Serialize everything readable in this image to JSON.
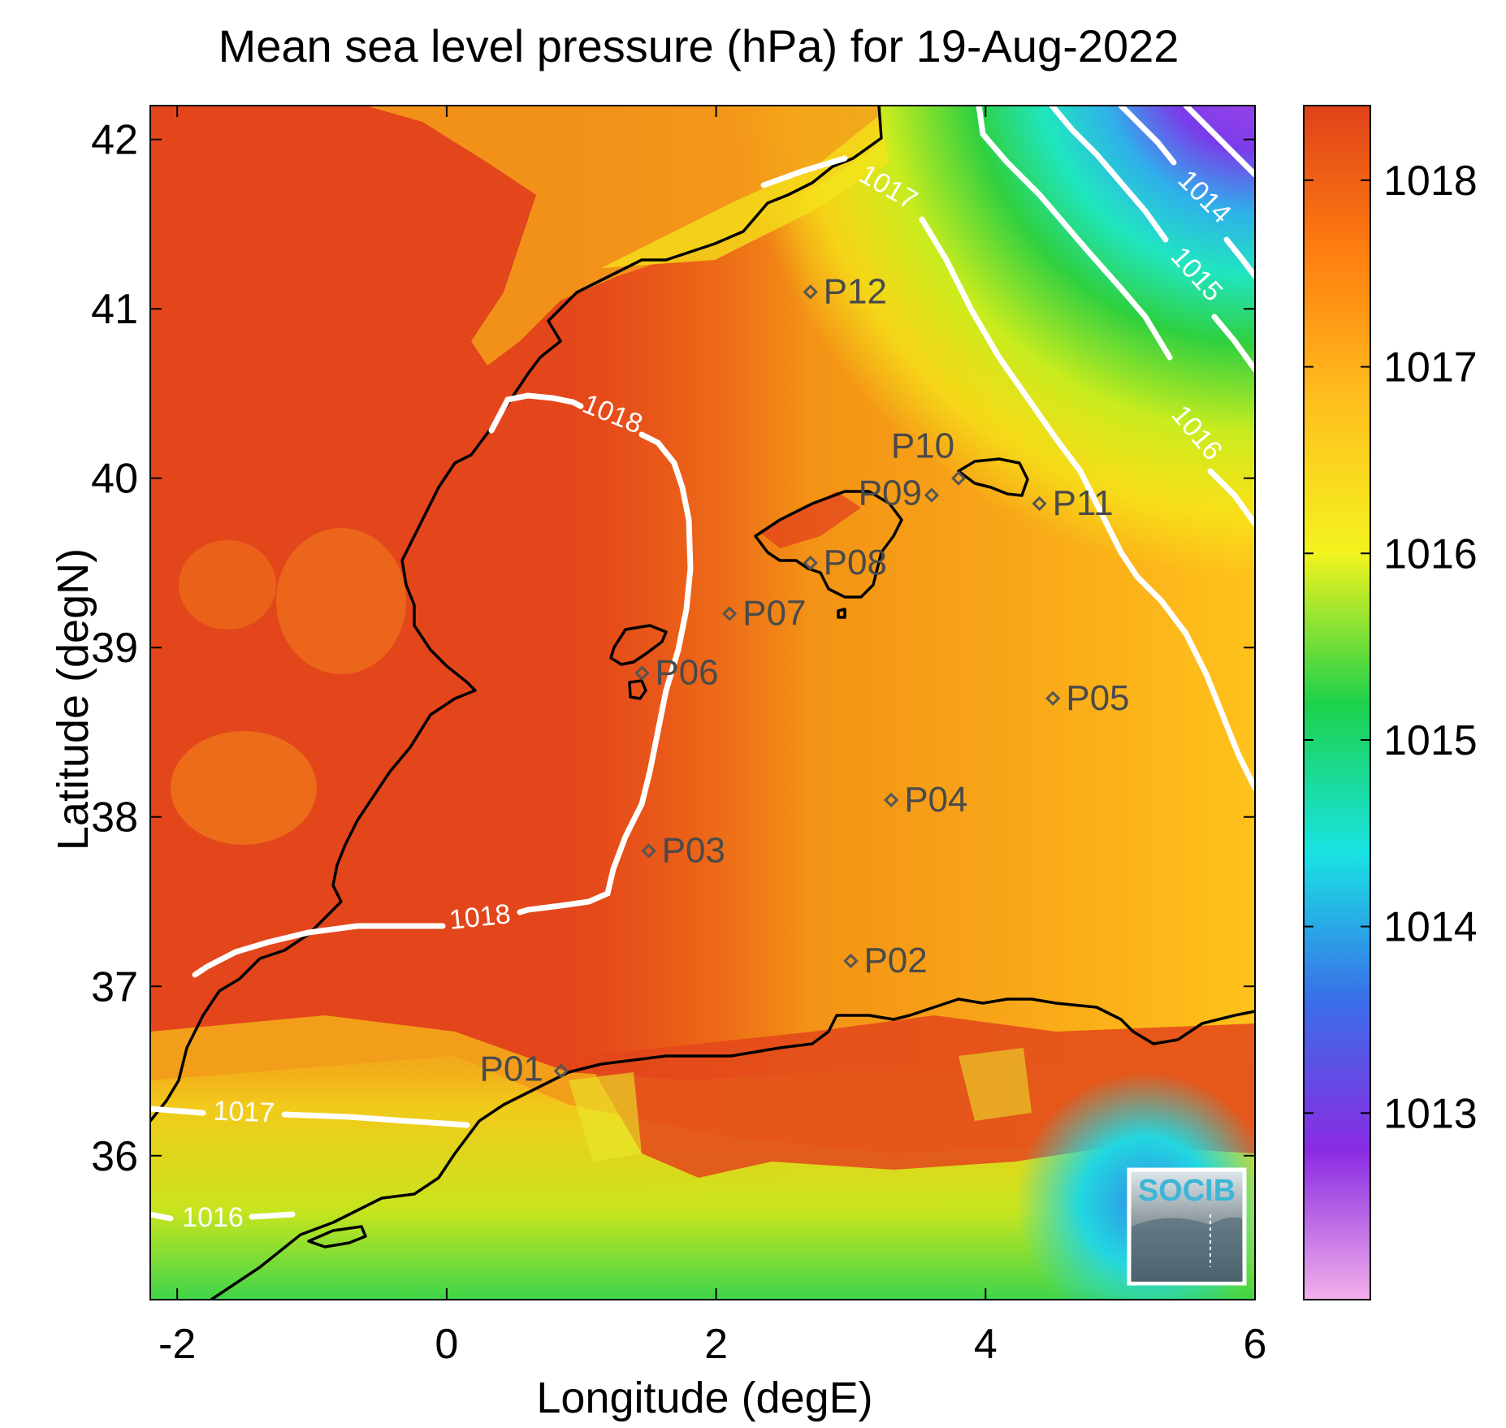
{
  "title": "Mean sea level pressure (hPa) for 19-Aug-2022",
  "axes": {
    "xlabel": "Longitude (degE)",
    "ylabel": "Latitude (degN)",
    "xlim": [
      -2.2,
      6.0
    ],
    "ylim": [
      35.15,
      42.2
    ],
    "xticks": [
      -2,
      0,
      2,
      4,
      6
    ],
    "yticks": [
      36,
      37,
      38,
      39,
      40,
      41,
      42
    ]
  },
  "colorbar": {
    "range": [
      1012.0,
      1018.4
    ],
    "ticks": [
      1013,
      1014,
      1015,
      1016,
      1017,
      1018
    ],
    "stops": [
      "#f2b0ea",
      "#8a2be2",
      "#3a6ee8",
      "#19e3e3",
      "#1dd14a",
      "#f3f31e",
      "#ffc01e",
      "#ff7f10",
      "#e0421a"
    ]
  },
  "stations": [
    {
      "id": "P01",
      "lon": 0.85,
      "lat": 36.5
    },
    {
      "id": "P02",
      "lon": 3.0,
      "lat": 37.15
    },
    {
      "id": "P03",
      "lon": 1.5,
      "lat": 37.8
    },
    {
      "id": "P04",
      "lon": 3.3,
      "lat": 38.1
    },
    {
      "id": "P05",
      "lon": 4.5,
      "lat": 38.7
    },
    {
      "id": "P06",
      "lon": 1.45,
      "lat": 38.85
    },
    {
      "id": "P07",
      "lon": 2.1,
      "lat": 39.2
    },
    {
      "id": "P08",
      "lon": 2.7,
      "lat": 39.5
    },
    {
      "id": "P09",
      "lon": 3.6,
      "lat": 39.9
    },
    {
      "id": "P10",
      "lon": 3.8,
      "lat": 40.0
    },
    {
      "id": "P11",
      "lon": 4.4,
      "lat": 39.85
    },
    {
      "id": "P12",
      "lon": 2.7,
      "lat": 41.1
    }
  ],
  "contours": [
    {
      "value": "1018"
    },
    {
      "value": "1017"
    },
    {
      "value": "1016"
    },
    {
      "value": "1015"
    },
    {
      "value": "1014"
    }
  ],
  "logo": {
    "text": "SOCIB"
  }
}
